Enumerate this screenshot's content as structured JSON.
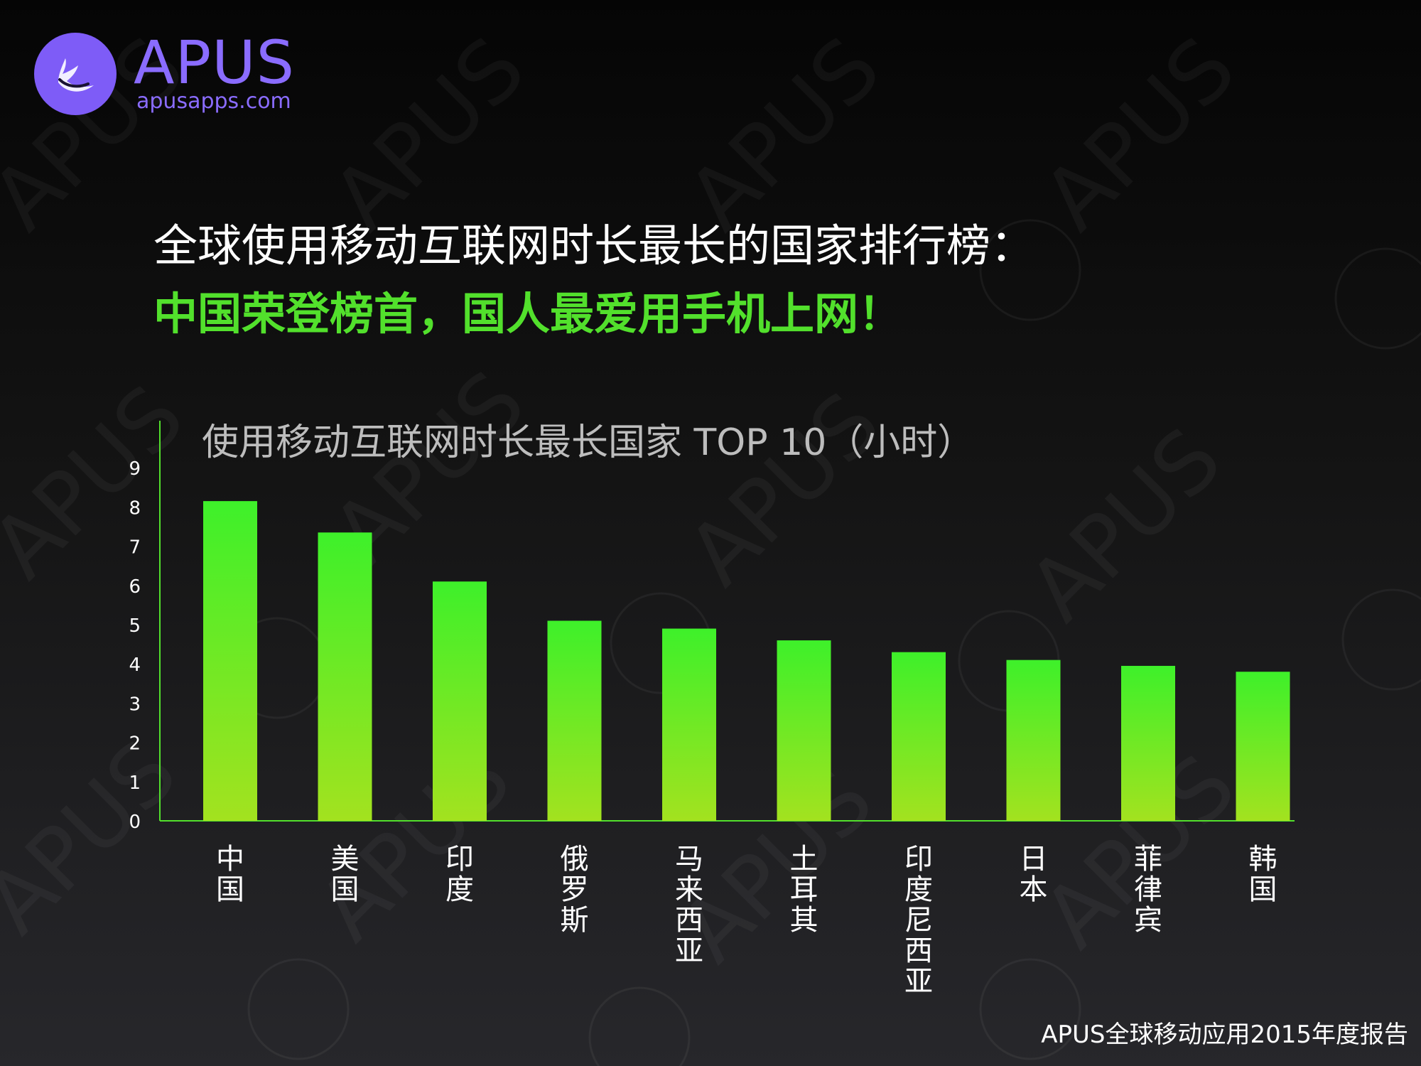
{
  "brand": {
    "name": "APUS",
    "url": "apusapps.com"
  },
  "title_line1": "全球使用移动互联网时长最长的国家排行榜：",
  "title_line2": "中国荣登榜首，国人最爱用手机上网！",
  "footer": "APUS全球移动应用2015年度报告",
  "colors": {
    "brand_purple": "#7e5cf7",
    "accent_green": "#52e02c",
    "bar_top": "#3ef02a",
    "bar_bottom": "#a3e21f"
  },
  "chart_data": {
    "type": "bar",
    "title": "使用移动互联网时长最长国家 TOP 10（小时）",
    "categories": [
      "中国",
      "美国",
      "印度",
      "俄罗斯",
      "马来西亚",
      "土耳其",
      "印度尼西亚",
      "日本",
      "菲律宾",
      "韩国"
    ],
    "values": [
      8.15,
      7.35,
      6.1,
      5.1,
      4.9,
      4.6,
      4.3,
      4.1,
      3.95,
      3.8
    ],
    "y_ticks": [
      "0",
      "1",
      "2",
      "3",
      "4",
      "5",
      "6",
      "7",
      "8",
      "9"
    ],
    "ylim": [
      0,
      10
    ],
    "grid": false,
    "xlabel": "",
    "ylabel": ""
  }
}
